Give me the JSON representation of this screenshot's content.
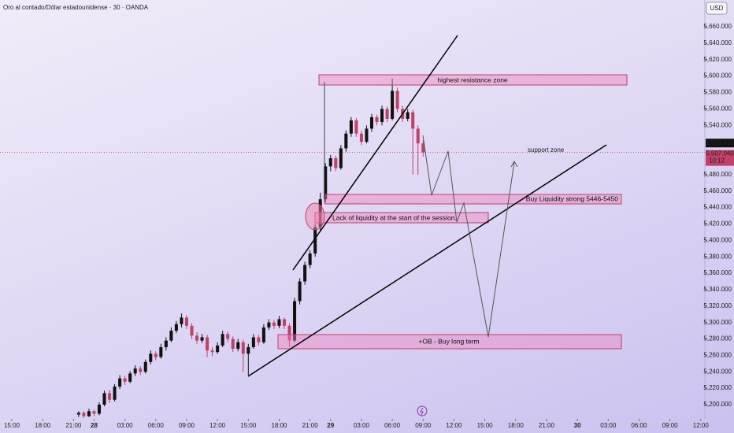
{
  "chart_data": {
    "type": "candlestick",
    "title": "Oro al contado/Dólar estadounidense · 30 · OANDA",
    "currency": "USD",
    "up_color": "#111111",
    "down_color": "#c2406a",
    "x": [
      13,
      14,
      15,
      16,
      17,
      18,
      19,
      20,
      21,
      22,
      23,
      24,
      25,
      26,
      27,
      28,
      29,
      30,
      31,
      32,
      33,
      34,
      35,
      36,
      37,
      38,
      39,
      40,
      41,
      42,
      43,
      44,
      45,
      46,
      47,
      48,
      49,
      50,
      51,
      52,
      53,
      54,
      55,
      56,
      57,
      58,
      59,
      60,
      61,
      62,
      63,
      64,
      65,
      66,
      67,
      68,
      69,
      70,
      71,
      72,
      73,
      74,
      75,
      76,
      77,
      78,
      79,
      80
    ],
    "open": [
      5188,
      5190,
      5186,
      5192,
      5189,
      5200,
      5214,
      5206,
      5222,
      5232,
      5228,
      5238,
      5244,
      5240,
      5252,
      5262,
      5258,
      5270,
      5278,
      5290,
      5298,
      5306,
      5296,
      5284,
      5278,
      5282,
      5266,
      5264,
      5272,
      5286,
      5280,
      5268,
      5276,
      5262,
      5270,
      5282,
      5276,
      5294,
      5300,
      5296,
      5304,
      5296,
      5278,
      5326,
      5350,
      5370,
      5384,
      5416,
      5450,
      5490,
      5500,
      5488,
      5512,
      5530,
      5546,
      5530,
      5520,
      5536,
      5550,
      5544,
      5560,
      5548,
      5582,
      5560,
      5548,
      5556,
      5536,
      5518
    ],
    "high": [
      5192,
      5192,
      5195,
      5194,
      5203,
      5217,
      5218,
      5225,
      5236,
      5235,
      5241,
      5248,
      5247,
      5255,
      5266,
      5265,
      5274,
      5282,
      5294,
      5302,
      5311,
      5309,
      5299,
      5288,
      5286,
      5285,
      5270,
      5276,
      5290,
      5289,
      5283,
      5280,
      5279,
      5274,
      5286,
      5285,
      5298,
      5304,
      5303,
      5308,
      5306,
      5299,
      5330,
      5354,
      5374,
      5388,
      5420,
      5458,
      5494,
      5504,
      5503,
      5516,
      5534,
      5550,
      5549,
      5534,
      5540,
      5554,
      5553,
      5564,
      5563,
      5597,
      5586,
      5564,
      5560,
      5559,
      5540,
      5522
    ],
    "low": [
      5185,
      5184,
      5185,
      5186,
      5187,
      5198,
      5202,
      5204,
      5219,
      5224,
      5226,
      5235,
      5236,
      5238,
      5249,
      5254,
      5256,
      5266,
      5276,
      5287,
      5294,
      5292,
      5280,
      5274,
      5275,
      5258,
      5259,
      5262,
      5270,
      5276,
      5264,
      5265,
      5240,
      5236,
      5268,
      5272,
      5274,
      5291,
      5292,
      5293,
      5292,
      5270,
      5276,
      5322,
      5346,
      5366,
      5380,
      5412,
      5446,
      5484,
      5484,
      5486,
      5508,
      5526,
      5526,
      5516,
      5518,
      5532,
      5540,
      5540,
      5544,
      5546,
      5556,
      5544,
      5545,
      5480,
      5480,
      5502
    ],
    "close": [
      5190,
      5186,
      5192,
      5189,
      5200,
      5214,
      5206,
      5222,
      5232,
      5228,
      5238,
      5244,
      5240,
      5252,
      5262,
      5258,
      5270,
      5278,
      5290,
      5298,
      5306,
      5296,
      5284,
      5278,
      5282,
      5266,
      5264,
      5272,
      5286,
      5280,
      5268,
      5276,
      5262,
      5270,
      5282,
      5276,
      5294,
      5300,
      5296,
      5304,
      5296,
      5278,
      5326,
      5350,
      5370,
      5384,
      5416,
      5450,
      5490,
      5500,
      5488,
      5512,
      5530,
      5546,
      5530,
      5520,
      5536,
      5550,
      5544,
      5560,
      5548,
      5582,
      5560,
      5548,
      5556,
      5536,
      5518,
      5507.04
    ],
    "xlim": [
      -2.3,
      134.8
    ],
    "xticks": [
      {
        "value": 0,
        "label": "15:00"
      },
      {
        "value": 6,
        "label": "18:00"
      },
      {
        "value": 12,
        "label": "21:00"
      },
      {
        "value": 16,
        "label": "28"
      },
      {
        "value": 22,
        "label": "03:00"
      },
      {
        "value": 28,
        "label": "06:00"
      },
      {
        "value": 34,
        "label": "09:00"
      },
      {
        "value": 40,
        "label": "12:00"
      },
      {
        "value": 46,
        "label": "15:00"
      },
      {
        "value": 52,
        "label": "18:00"
      },
      {
        "value": 58,
        "label": "21:00"
      },
      {
        "value": 62,
        "label": "29"
      },
      {
        "value": 68,
        "label": "03:00"
      },
      {
        "value": 74,
        "label": "06:00"
      },
      {
        "value": 80,
        "label": "09:00"
      },
      {
        "value": 86,
        "label": "12:00"
      },
      {
        "value": 92,
        "label": "15:00"
      },
      {
        "value": 98,
        "label": "18:00"
      },
      {
        "value": 104,
        "label": "21:00"
      },
      {
        "value": 110,
        "label": "30"
      },
      {
        "value": 116,
        "label": "03:00"
      },
      {
        "value": 122,
        "label": "06:00"
      },
      {
        "value": 128,
        "label": "09:00"
      },
      {
        "value": 134,
        "label": "12:00"
      }
    ],
    "ylim": [
      5165.5,
      5692.6
    ],
    "yticks": [
      {
        "value": 5200,
        "label": "5,200.000"
      },
      {
        "value": 5220,
        "label": "5,220.000"
      },
      {
        "value": 5240,
        "label": "5,240.000"
      },
      {
        "value": 5260,
        "label": "5,260.000"
      },
      {
        "value": 5280,
        "label": "5,280.000"
      },
      {
        "value": 5300,
        "label": "5,300.000"
      },
      {
        "value": 5320,
        "label": "5,320.000"
      },
      {
        "value": 5340,
        "label": "5,340.000"
      },
      {
        "value": 5360,
        "label": "5,360.000"
      },
      {
        "value": 5380,
        "label": "5,380.000"
      },
      {
        "value": 5400,
        "label": "5,400.000"
      },
      {
        "value": 5420,
        "label": "5,420.000"
      },
      {
        "value": 5440,
        "label": "5,440.000"
      },
      {
        "value": 5460,
        "label": "5,460.000"
      },
      {
        "value": 5480,
        "label": "5,480.000"
      },
      {
        "value": 5540,
        "label": "5,540.000"
      },
      {
        "value": 5560,
        "label": "5,560.000"
      },
      {
        "value": 5580,
        "label": "5,580.000"
      },
      {
        "value": 5600,
        "label": "5,600.000"
      },
      {
        "value": 5620,
        "label": "5,620.000"
      },
      {
        "value": 5640,
        "label": "5,640.000"
      },
      {
        "value": 5660,
        "label": "5,660.000"
      }
    ],
    "bid_price": {
      "value": 5508.41,
      "label": "5,508.410"
    },
    "last_price": {
      "value": 5507.04,
      "label": "5,507.040"
    },
    "countdown": "10:12",
    "annotations": [
      "highest resistance zone",
      "support zone",
      "Buy Liquidity strong 5446-5450",
      "Lack of liquidity at the start of the session.",
      "+OB - Buy long term"
    ]
  }
}
